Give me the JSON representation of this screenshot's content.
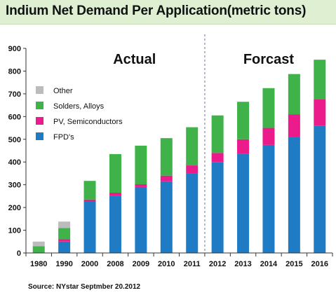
{
  "title": "Indium Net Demand Per Application(metric tons)",
  "source": "Source: NYstar Septmber 20.2012",
  "chart_data": {
    "type": "bar",
    "stacked": true,
    "title": "Indium Net Demand Per Application(metric tons)",
    "xlabel": "",
    "ylabel": "",
    "ylim": [
      0,
      900
    ],
    "yticks": [
      "0",
      "100",
      "200",
      "300",
      "400",
      "500",
      "600",
      "700",
      "800",
      "900"
    ],
    "categories": [
      "1980",
      "1990",
      "2000",
      "2008",
      "2009",
      "2010",
      "2011",
      "2012",
      "2013",
      "2014",
      "2015",
      "2016"
    ],
    "series": [
      {
        "name": "FPD's",
        "color": "#1f7cc4",
        "values": [
          0,
          50,
          225,
          250,
          290,
          315,
          350,
          400,
          435,
          475,
          510,
          560
        ]
      },
      {
        "name": "PV, Semiconductors",
        "color": "#ec1b8c",
        "values": [
          0,
          10,
          10,
          15,
          12,
          25,
          35,
          40,
          65,
          75,
          100,
          115
        ]
      },
      {
        "name": "Solders, Alloys",
        "color": "#3fb34a",
        "values": [
          30,
          50,
          82,
          170,
          170,
          165,
          168,
          165,
          165,
          175,
          177,
          175
        ]
      },
      {
        "name": "Other",
        "color": "#bcbcbc",
        "values": [
          20,
          28,
          0,
          0,
          0,
          0,
          0,
          0,
          0,
          0,
          0,
          0
        ]
      }
    ],
    "legend": {
      "placement": "top-left",
      "order": [
        "Other",
        "Solders, Alloys",
        "PV, Semiconductors",
        "FPD's"
      ]
    },
    "annotations": [
      {
        "text": "Actual",
        "applies_to": [
          "1980",
          "1990",
          "2000",
          "2008",
          "2009",
          "2010",
          "2011"
        ]
      },
      {
        "text": "Forcast",
        "applies_to": [
          "2012",
          "2013",
          "2014",
          "2015",
          "2016"
        ]
      }
    ],
    "divider_between": [
      "2011",
      "2012"
    ],
    "grid": false
  }
}
